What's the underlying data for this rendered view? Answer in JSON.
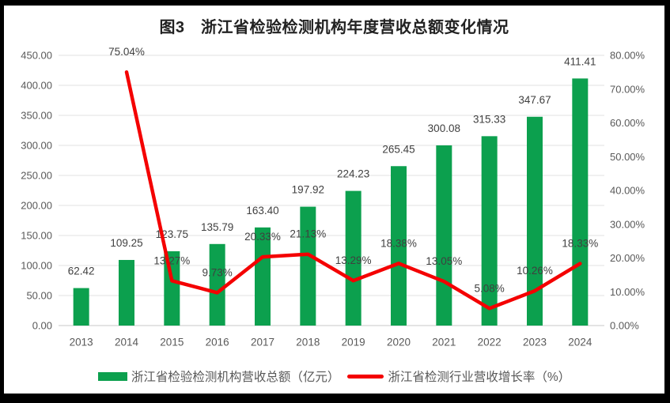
{
  "title": "图3　浙江省检验检测机构年度营收总额变化情况",
  "colors": {
    "bar": "#0ca04e",
    "line": "#f40000",
    "grid": "#e2e2e2",
    "baseline": "#c9c9c9",
    "axis_text": "#595959",
    "label_text": "#3f3f3f",
    "frame": "#000000",
    "background": "#ffffff"
  },
  "legend": [
    {
      "type": "bar",
      "label": "浙江省检验检测机构营收总额（亿元）",
      "color": "#0ca04e"
    },
    {
      "type": "line",
      "label": "浙江省检测行业营收增长率（%）",
      "color": "#f40000"
    }
  ],
  "chart_data": {
    "type": "combo",
    "title": "图3　浙江省检验检测机构年度营收总额变化情况",
    "categories": [
      "2013",
      "2014",
      "2015",
      "2016",
      "2017",
      "2018",
      "2019",
      "2020",
      "2021",
      "2022",
      "2023",
      "2024"
    ],
    "series": [
      {
        "name": "浙江省检验检测机构营收总额（亿元）",
        "type": "bar",
        "axis": "left",
        "color": "#0ca04e",
        "values": [
          62.42,
          109.25,
          123.75,
          135.79,
          163.4,
          197.92,
          224.23,
          265.45,
          300.08,
          315.33,
          347.67,
          411.41
        ],
        "labels": [
          "62.42",
          "109.25",
          "123.75",
          "135.79",
          "163.40",
          "197.92",
          "224.23",
          "265.45",
          "300.08",
          "315.33",
          "347.67",
          "411.41"
        ]
      },
      {
        "name": "浙江省检测行业营收增长率（%）",
        "type": "line",
        "axis": "right",
        "color": "#f40000",
        "values": [
          null,
          75.04,
          13.27,
          9.73,
          20.33,
          21.13,
          13.29,
          18.38,
          13.05,
          5.08,
          10.26,
          18.33
        ],
        "labels": [
          null,
          "75.04%",
          "13.27%",
          "9.73%",
          "20.33%",
          "21.13%",
          "13.29%",
          "18.38%",
          "13.05%",
          "5.08%",
          "10.26%",
          "18.33%"
        ]
      }
    ],
    "left_axis": {
      "min": 0,
      "max": 450,
      "tick_values": [
        0,
        50,
        100,
        150,
        200,
        250,
        300,
        350,
        400,
        450
      ],
      "tick_labels": [
        "0.00",
        "50.00",
        "100.00",
        "150.00",
        "200.00",
        "250.00",
        "300.00",
        "350.00",
        "400.00",
        "450.00"
      ]
    },
    "right_axis": {
      "min": 0,
      "max": 80,
      "tick_values": [
        0,
        10,
        20,
        30,
        40,
        50,
        60,
        70,
        80
      ],
      "tick_labels": [
        "0.00%",
        "10.00%",
        "20.00%",
        "30.00%",
        "40.00%",
        "50.00%",
        "60.00%",
        "70.00%",
        "80.00%"
      ]
    },
    "grid": true,
    "legend_position": "bottom"
  }
}
